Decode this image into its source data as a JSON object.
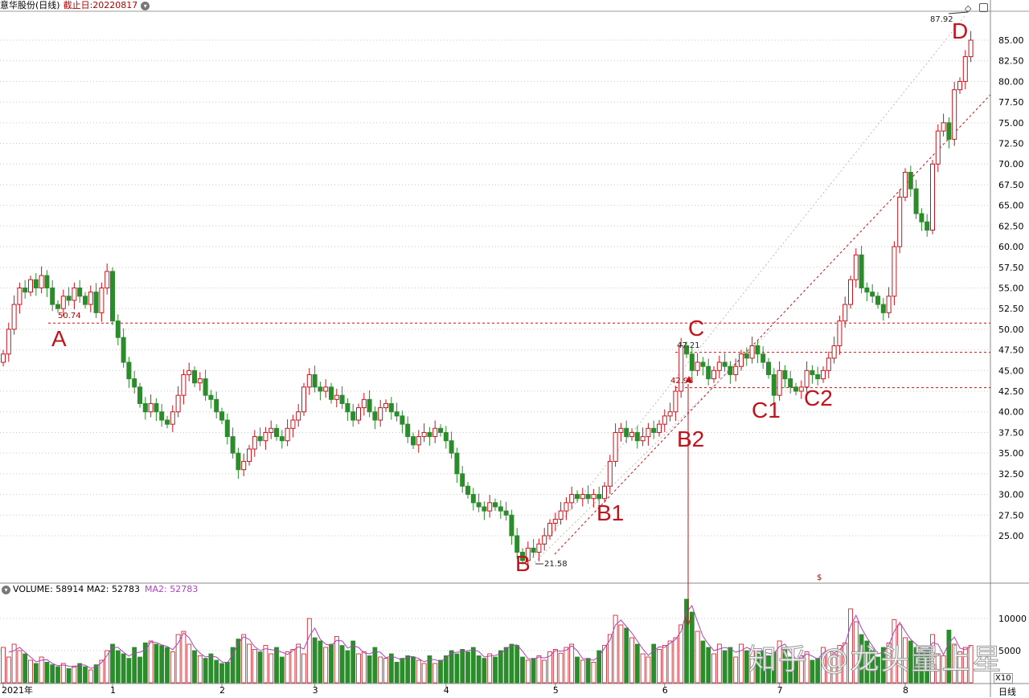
{
  "header": {
    "title": "意华股份(日线)",
    "deadline_label": "截止日:20220817",
    "toggle_icon": "chevron-down-circle-icon"
  },
  "volume_header": {
    "volume": "VOLUME: 58914",
    "ma2": "MA2: 52783",
    "ma2_colored": "MA2: 52783"
  },
  "annotations": {
    "A": "A",
    "B": "B",
    "B1": "B1",
    "B2": "B2",
    "C": "C",
    "C1": "C1",
    "C2": "C2",
    "D": "D",
    "a_val": "50.74",
    "c_val": "47.21",
    "b2_val": "42.93",
    "b_val": "21.58",
    "d_val": "87.92"
  },
  "watermark": "知乎 @龙头量上星",
  "footer": {
    "period": "日线",
    "volume_unit": "X10"
  },
  "colors": {
    "up": "#c8141c",
    "down": "#2a8c2a",
    "ma": "#b040c0",
    "level_line": "#c0141c",
    "grid": "#c8c8c8"
  },
  "chart_data": {
    "type": "candlestick",
    "ylim": [
      21,
      88
    ],
    "yticks": [
      "85.00",
      "82.50",
      "80.00",
      "77.50",
      "75.00",
      "72.50",
      "70.00",
      "67.50",
      "65.00",
      "62.50",
      "60.00",
      "57.50",
      "55.00",
      "52.50",
      "50.00",
      "47.50",
      "45.00",
      "42.50",
      "40.00",
      "37.50",
      "35.00",
      "32.50",
      "30.00",
      "27.50",
      "25.00"
    ],
    "volume_ticks": [
      "10000",
      "5000"
    ],
    "xticks": [
      {
        "bar": 0,
        "label": "2021年"
      },
      {
        "bar": 20,
        "label": "1"
      },
      {
        "bar": 40,
        "label": "2"
      },
      {
        "bar": 57,
        "label": "3"
      },
      {
        "bar": 81,
        "label": "4"
      },
      {
        "bar": 101,
        "label": "5"
      },
      {
        "bar": 121,
        "label": "6"
      },
      {
        "bar": 142,
        "label": "7"
      },
      {
        "bar": 165,
        "label": "8"
      }
    ],
    "levels": [
      50.74,
      47.21,
      42.93
    ],
    "first_open": 46,
    "close": [
      47,
      50,
      53,
      55,
      54.5,
      56,
      55,
      56.5,
      55,
      53,
      52.5,
      54,
      53.5,
      55,
      54,
      53,
      54.5,
      52,
      55,
      57,
      51,
      49,
      46,
      44,
      43,
      41,
      40,
      41,
      40,
      39,
      38.5,
      40,
      42,
      44.5,
      45,
      43.5,
      44,
      42,
      41.5,
      40,
      39,
      37,
      35,
      33,
      34,
      35.5,
      37,
      36.5,
      37.5,
      38,
      37,
      36.5,
      38,
      39,
      40,
      43,
      44.5,
      43,
      42.5,
      43,
      41.5,
      42,
      41,
      40,
      39,
      40.5,
      41.5,
      40,
      39,
      40.5,
      41,
      40,
      39.5,
      38.5,
      37,
      36,
      37,
      37.5,
      37,
      38,
      37.5,
      36.5,
      35,
      32.5,
      31,
      30,
      29,
      28.5,
      28,
      29,
      28.5,
      28,
      27.5,
      25,
      23,
      22,
      23.5,
      23,
      24,
      25,
      26.5,
      27,
      28,
      29,
      30,
      29.5,
      30,
      29.5,
      30,
      29.5,
      31,
      34,
      37.5,
      38,
      37,
      37.5,
      36.5,
      37,
      38,
      37.5,
      38.5,
      39.5,
      40,
      42.5,
      48,
      47,
      45,
      46,
      45.5,
      44,
      45,
      46,
      45.5,
      44.5,
      45.5,
      47,
      46.5,
      48,
      47,
      46,
      44.5,
      42,
      45,
      44,
      43,
      42.5,
      43,
      45,
      44.5,
      44,
      45,
      46.5,
      48,
      51,
      53,
      56,
      59,
      55,
      54.5,
      54,
      53,
      52,
      54,
      60,
      66,
      69,
      67,
      64,
      63,
      62,
      70,
      74,
      75,
      73,
      79,
      80,
      83,
      85
    ],
    "volume": [
      5500,
      4000,
      6000,
      5000,
      4500,
      3500,
      3000,
      4000,
      3200,
      2800,
      2500,
      3000,
      2200,
      2600,
      3000,
      2500,
      2000,
      2800,
      3500,
      5000,
      6000,
      5000,
      4500,
      3800,
      5500,
      4000,
      6200,
      6500,
      6000,
      5800,
      5500,
      4800,
      7500,
      8000,
      6000,
      5000,
      4200,
      3800,
      4500,
      3500,
      3000,
      3200,
      5500,
      6800,
      7500,
      6000,
      5200,
      4800,
      5800,
      4500,
      5500,
      4000,
      4800,
      5200,
      6000,
      4500,
      10000,
      7000,
      6500,
      5500,
      6000,
      7200,
      5800,
      5000,
      6500,
      4500,
      4800,
      4200,
      5500,
      4000,
      3800,
      4500,
      3200,
      3800,
      4200,
      4000,
      3500,
      3000,
      4200,
      3000,
      3500,
      4200,
      5000,
      4500,
      5200,
      4800,
      5500,
      4200,
      3800,
      4500,
      4000,
      5000,
      5500,
      6000,
      5800,
      4000,
      3500,
      3800,
      4200,
      3500,
      4800,
      5200,
      4600,
      5500,
      6000,
      4000,
      3500,
      3800,
      3200,
      5000,
      5800,
      7500,
      10500,
      9000,
      8500,
      7000,
      6000,
      4500,
      4000,
      6000,
      5200,
      5800,
      6500,
      7000,
      9000,
      13000,
      11000,
      8000,
      6500,
      5500,
      4500,
      6000,
      5000,
      5500,
      4000,
      6000,
      5000,
      5200,
      4500,
      5000,
      4200,
      4800,
      6500,
      5500,
      4000,
      3500,
      4200,
      4800,
      3500,
      3800,
      5500,
      4800,
      4500,
      5800,
      6200,
      11500,
      9500,
      7500,
      6500,
      5000,
      4000,
      5500,
      6200,
      9800,
      9000,
      7000,
      6500,
      5500,
      4800,
      5000,
      7500,
      4500,
      4200,
      8200,
      6000,
      4800,
      5500,
      5800
    ]
  }
}
